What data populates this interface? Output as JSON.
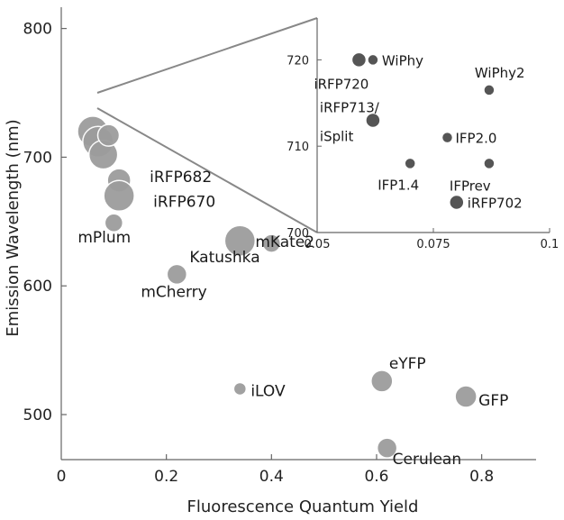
{
  "chart_data": [
    {
      "type": "scatter",
      "title": "",
      "xlabel": "Fluorescence Quantum Yield",
      "ylabel": "Emission Wavelength (nm)",
      "xlim": [
        0,
        0.9
      ],
      "ylim": [
        460,
        810
      ],
      "xticks": [
        "0",
        "0.2",
        "0.4",
        "0.6",
        "0.8"
      ],
      "yticks": [
        "500",
        "600",
        "700",
        "800"
      ],
      "grid": false,
      "points": [
        {
          "x": 0.06,
          "y": 720,
          "size": 17,
          "label": ""
        },
        {
          "x": 0.07,
          "y": 712,
          "size": 17,
          "label": ""
        },
        {
          "x": 0.08,
          "y": 702,
          "size": 16,
          "label": ""
        },
        {
          "x": 0.09,
          "y": 717,
          "size": 12,
          "label": ""
        },
        {
          "x": 0.11,
          "y": 682,
          "size": 13,
          "label": "iRFP682"
        },
        {
          "x": 0.11,
          "y": 670,
          "size": 17,
          "label": "iRFP670"
        },
        {
          "x": 0.1,
          "y": 649,
          "size": 10,
          "label": "mPlum"
        },
        {
          "x": 0.34,
          "y": 635,
          "size": 17,
          "label": "Katushka"
        },
        {
          "x": 0.4,
          "y": 633,
          "size": 10,
          "label": "mKate2"
        },
        {
          "x": 0.22,
          "y": 609,
          "size": 11,
          "label": "mCherry"
        },
        {
          "x": 0.34,
          "y": 520,
          "size": 7,
          "label": "iLOV"
        },
        {
          "x": 0.61,
          "y": 526,
          "size": 12,
          "label": "eYFP"
        },
        {
          "x": 0.77,
          "y": 514,
          "size": 12,
          "label": "GFP"
        },
        {
          "x": 0.62,
          "y": 474,
          "size": 11,
          "label": "Cerulean"
        }
      ]
    },
    {
      "type": "scatter",
      "title": "",
      "xlabel": "",
      "ylabel": "",
      "xlim": [
        0.05,
        0.1
      ],
      "ylim": [
        700,
        722
      ],
      "xticks": [
        "0.05",
        "0.075",
        "0.1"
      ],
      "yticks": [
        "700",
        "710",
        "720"
      ],
      "grid": false,
      "points": [
        {
          "x": 0.059,
          "y": 720,
          "size": 8,
          "label": "iRFP720"
        },
        {
          "x": 0.062,
          "y": 720,
          "size": 6,
          "label": "WiPhy"
        },
        {
          "x": 0.087,
          "y": 716.5,
          "size": 6,
          "label": "WiPhy2"
        },
        {
          "x": 0.062,
          "y": 713,
          "size": 8,
          "label": "iRFP713/"
        },
        {
          "x": 0.062,
          "y": 713,
          "size": 0,
          "label": "iSplit"
        },
        {
          "x": 0.078,
          "y": 711,
          "size": 6,
          "label": "IFP2.0"
        },
        {
          "x": 0.07,
          "y": 708,
          "size": 6,
          "label": "IFP1.4"
        },
        {
          "x": 0.087,
          "y": 708,
          "size": 6,
          "label": "IFPrev"
        },
        {
          "x": 0.08,
          "y": 703.5,
          "size": 8,
          "label": "iRFP702"
        }
      ]
    }
  ]
}
